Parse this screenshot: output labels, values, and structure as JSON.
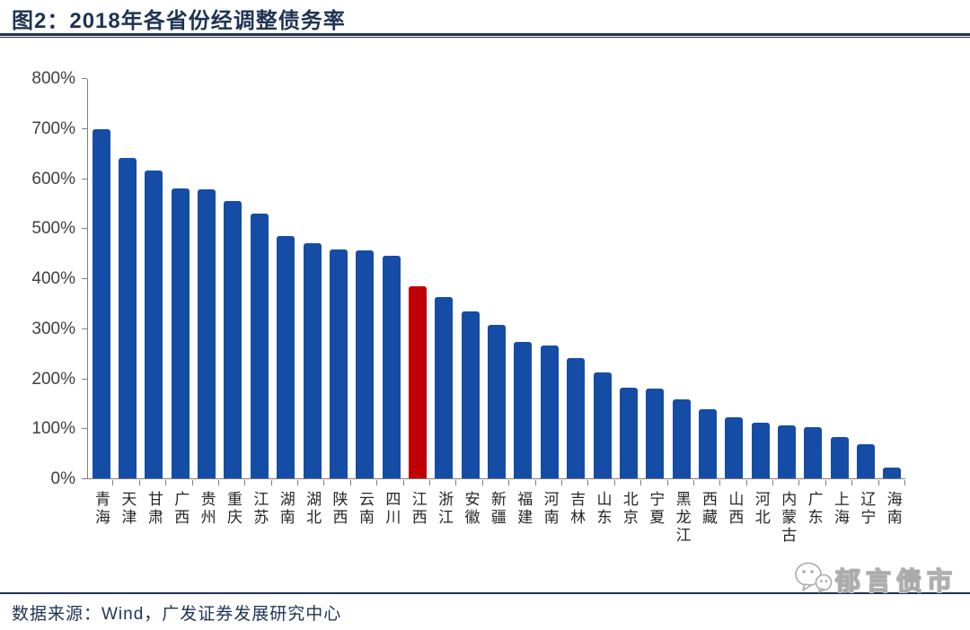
{
  "page": {
    "title": "图2：2018年各省份经调整债务率",
    "source": "数据来源：Wind，广发证券发展研究中心",
    "watermark_text": "郁言债市"
  },
  "colors": {
    "bar_blue": "#154DA6",
    "bar_highlight_red": "#C00000",
    "navy_text": "#1F3353",
    "axis_gray": "#7F7F7F",
    "tick_label_gray": "#3F3F3F",
    "watermark_gray": "#ABABAB"
  },
  "icons": {
    "watermark_logo": "wechat-bubbles-icon"
  },
  "chart_data": {
    "type": "bar",
    "title": "2018年各省份经调整债务率",
    "categories": [
      "青海",
      "天津",
      "甘肃",
      "广西",
      "贵州",
      "重庆",
      "江苏",
      "湖南",
      "湖北",
      "陕西",
      "云南",
      "四川",
      "江西",
      "浙江",
      "安徽",
      "新疆",
      "福建",
      "河南",
      "吉林",
      "山东",
      "北京",
      "宁夏",
      "黑龙江",
      "西藏",
      "山西",
      "河北",
      "内蒙古",
      "广东",
      "上海",
      "辽宁",
      "海南"
    ],
    "values": [
      697,
      640,
      616,
      579,
      577,
      555,
      530,
      484,
      470,
      457,
      455,
      444,
      383,
      362,
      334,
      307,
      273,
      266,
      240,
      211,
      182,
      180,
      158,
      139,
      122,
      112,
      105,
      102,
      83,
      68,
      22
    ],
    "unit": "%",
    "highlight_index": 12,
    "highlight_category": "江西",
    "ylim": [
      0,
      800
    ],
    "ytick_step": 100,
    "yticks": [
      "0%",
      "100%",
      "200%",
      "300%",
      "400%",
      "500%",
      "600%",
      "700%",
      "800%"
    ],
    "grid": false,
    "legend_position": "none",
    "xlabel": "",
    "ylabel": ""
  }
}
